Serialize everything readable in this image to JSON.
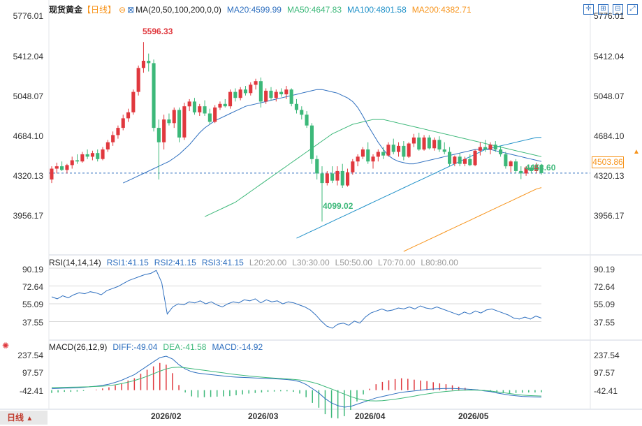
{
  "header": {
    "instrument": "现货黄金",
    "period_tag": "【日线】",
    "ma_label": "MA(20,50,100,200,0,0)",
    "ma20": "MA20:4599.99",
    "ma50": "MA50:4647.83",
    "ma100": "MA100:4801.58",
    "ma200": "MA200:4382.71"
  },
  "price_axis": [
    "5776.01",
    "5412.04",
    "5048.07",
    "4684.10",
    "4320.13",
    "3956.17"
  ],
  "rsi_axis": [
    "90.19",
    "72.64",
    "55.09",
    "37.55"
  ],
  "macd_axis": [
    "237.54",
    "97.57",
    "-42.41"
  ],
  "x_labels": [
    "2026/02",
    "2026/03",
    "2026/04",
    "2026/05"
  ],
  "annotations": {
    "high": "5596.33",
    "low": "4099.02",
    "recent_low": "4453.60",
    "last": "4503.86"
  },
  "rsi_legend": {
    "title": "RSI(14,14,14)",
    "rsi1": "RSI1:41.15",
    "rsi2": "RSI2:41.15",
    "rsi3": "RSI3:41.15",
    "l20": "L20:20.00",
    "l30": "L30:30.00",
    "l50": "L50:50.00",
    "l70": "L70:70.00",
    "l80": "L80:80.00"
  },
  "macd_legend": {
    "title": "MACD(26,12,9)",
    "diff": "DIFF:-49.04",
    "dea": "DEA:-41.58",
    "macd": "MACD:-14.92"
  },
  "period_button": "日线",
  "colors": {
    "up": "#e0383e",
    "down": "#3cb879",
    "ma20": "#2e6fbf",
    "ma50": "#3cb879",
    "ma100": "#1e90c8",
    "ma200": "#f7931a"
  },
  "chart_data": {
    "type": "candlestick",
    "title": "现货黄金 日线",
    "ylim": [
      3850,
      5830
    ],
    "candles": [
      {
        "o": 4450,
        "h": 4560,
        "l": 4420,
        "c": 4540
      },
      {
        "o": 4540,
        "h": 4590,
        "l": 4500,
        "c": 4560
      },
      {
        "o": 4560,
        "h": 4600,
        "l": 4520,
        "c": 4530
      },
      {
        "o": 4530,
        "h": 4580,
        "l": 4500,
        "c": 4570
      },
      {
        "o": 4570,
        "h": 4640,
        "l": 4540,
        "c": 4610
      },
      {
        "o": 4610,
        "h": 4660,
        "l": 4580,
        "c": 4600
      },
      {
        "o": 4600,
        "h": 4680,
        "l": 4590,
        "c": 4660
      },
      {
        "o": 4660,
        "h": 4700,
        "l": 4620,
        "c": 4640
      },
      {
        "o": 4640,
        "h": 4690,
        "l": 4610,
        "c": 4670
      },
      {
        "o": 4670,
        "h": 4700,
        "l": 4600,
        "c": 4620
      },
      {
        "o": 4620,
        "h": 4720,
        "l": 4610,
        "c": 4700
      },
      {
        "o": 4700,
        "h": 4780,
        "l": 4680,
        "c": 4760
      },
      {
        "o": 4760,
        "h": 4850,
        "l": 4730,
        "c": 4820
      },
      {
        "o": 4820,
        "h": 4900,
        "l": 4790,
        "c": 4880
      },
      {
        "o": 4880,
        "h": 4990,
        "l": 4860,
        "c": 4960
      },
      {
        "o": 4960,
        "h": 5040,
        "l": 4930,
        "c": 5010
      },
      {
        "o": 5010,
        "h": 5200,
        "l": 4990,
        "c": 5180
      },
      {
        "o": 5180,
        "h": 5400,
        "l": 5150,
        "c": 5380
      },
      {
        "o": 5380,
        "h": 5596,
        "l": 5340,
        "c": 5440
      },
      {
        "o": 5440,
        "h": 5500,
        "l": 5350,
        "c": 5420
      },
      {
        "o": 5420,
        "h": 5450,
        "l": 4850,
        "c": 4880
      },
      {
        "o": 4880,
        "h": 4950,
        "l": 4450,
        "c": 4760
      },
      {
        "o": 4760,
        "h": 4990,
        "l": 4700,
        "c": 4950
      },
      {
        "o": 4950,
        "h": 5000,
        "l": 4900,
        "c": 4920
      },
      {
        "o": 4920,
        "h": 5050,
        "l": 4880,
        "c": 5030
      },
      {
        "o": 5030,
        "h": 5050,
        "l": 4760,
        "c": 4800
      },
      {
        "o": 4800,
        "h": 5090,
        "l": 4780,
        "c": 5060
      },
      {
        "o": 5060,
        "h": 5120,
        "l": 5020,
        "c": 5100
      },
      {
        "o": 5100,
        "h": 5130,
        "l": 4990,
        "c": 5010
      },
      {
        "o": 5010,
        "h": 5080,
        "l": 4980,
        "c": 5060
      },
      {
        "o": 5060,
        "h": 5110,
        "l": 4980,
        "c": 5000
      },
      {
        "o": 5000,
        "h": 5040,
        "l": 4910,
        "c": 4930
      },
      {
        "o": 4930,
        "h": 5070,
        "l": 4920,
        "c": 5050
      },
      {
        "o": 5050,
        "h": 5100,
        "l": 5030,
        "c": 5080
      },
      {
        "o": 5080,
        "h": 5120,
        "l": 5050,
        "c": 5060
      },
      {
        "o": 5060,
        "h": 5200,
        "l": 5040,
        "c": 5180
      },
      {
        "o": 5180,
        "h": 5210,
        "l": 5100,
        "c": 5130
      },
      {
        "o": 5130,
        "h": 5220,
        "l": 5110,
        "c": 5200
      },
      {
        "o": 5200,
        "h": 5230,
        "l": 5150,
        "c": 5170
      },
      {
        "o": 5170,
        "h": 5260,
        "l": 5150,
        "c": 5240
      },
      {
        "o": 5240,
        "h": 5290,
        "l": 5200,
        "c": 5270
      },
      {
        "o": 5270,
        "h": 5300,
        "l": 5050,
        "c": 5100
      },
      {
        "o": 5100,
        "h": 5210,
        "l": 5080,
        "c": 5190
      },
      {
        "o": 5190,
        "h": 5220,
        "l": 5110,
        "c": 5130
      },
      {
        "o": 5130,
        "h": 5200,
        "l": 5100,
        "c": 5180
      },
      {
        "o": 5180,
        "h": 5210,
        "l": 5140,
        "c": 5160
      },
      {
        "o": 5160,
        "h": 5230,
        "l": 5120,
        "c": 5200
      },
      {
        "o": 5200,
        "h": 5210,
        "l": 5060,
        "c": 5080
      },
      {
        "o": 5080,
        "h": 5120,
        "l": 5000,
        "c": 5030
      },
      {
        "o": 5030,
        "h": 5060,
        "l": 4950,
        "c": 4990
      },
      {
        "o": 4990,
        "h": 5020,
        "l": 4880,
        "c": 4900
      },
      {
        "o": 4900,
        "h": 4920,
        "l": 4580,
        "c": 4620
      },
      {
        "o": 4620,
        "h": 4650,
        "l": 4450,
        "c": 4500
      },
      {
        "o": 4500,
        "h": 4560,
        "l": 4099,
        "c": 4420
      },
      {
        "o": 4420,
        "h": 4520,
        "l": 4400,
        "c": 4500
      },
      {
        "o": 4500,
        "h": 4560,
        "l": 4420,
        "c": 4440
      },
      {
        "o": 4440,
        "h": 4560,
        "l": 4400,
        "c": 4520
      },
      {
        "o": 4520,
        "h": 4580,
        "l": 4380,
        "c": 4400
      },
      {
        "o": 4400,
        "h": 4540,
        "l": 4390,
        "c": 4510
      },
      {
        "o": 4510,
        "h": 4620,
        "l": 4490,
        "c": 4600
      },
      {
        "o": 4600,
        "h": 4660,
        "l": 4560,
        "c": 4640
      },
      {
        "o": 4640,
        "h": 4720,
        "l": 4620,
        "c": 4700
      },
      {
        "o": 4700,
        "h": 4760,
        "l": 4580,
        "c": 4600
      },
      {
        "o": 4600,
        "h": 4660,
        "l": 4540,
        "c": 4640
      },
      {
        "o": 4640,
        "h": 4700,
        "l": 4600,
        "c": 4680
      },
      {
        "o": 4680,
        "h": 4720,
        "l": 4620,
        "c": 4650
      },
      {
        "o": 4650,
        "h": 4760,
        "l": 4640,
        "c": 4740
      },
      {
        "o": 4740,
        "h": 4790,
        "l": 4660,
        "c": 4680
      },
      {
        "o": 4680,
        "h": 4760,
        "l": 4640,
        "c": 4730
      },
      {
        "o": 4730,
        "h": 4770,
        "l": 4610,
        "c": 4640
      },
      {
        "o": 4640,
        "h": 4760,
        "l": 4630,
        "c": 4750
      },
      {
        "o": 4750,
        "h": 4830,
        "l": 4720,
        "c": 4800
      },
      {
        "o": 4800,
        "h": 4840,
        "l": 4690,
        "c": 4700
      },
      {
        "o": 4700,
        "h": 4820,
        "l": 4690,
        "c": 4800
      },
      {
        "o": 4800,
        "h": 4820,
        "l": 4700,
        "c": 4710
      },
      {
        "o": 4710,
        "h": 4800,
        "l": 4690,
        "c": 4780
      },
      {
        "o": 4780,
        "h": 4810,
        "l": 4680,
        "c": 4700
      },
      {
        "o": 4700,
        "h": 4760,
        "l": 4660,
        "c": 4680
      },
      {
        "o": 4680,
        "h": 4720,
        "l": 4560,
        "c": 4580
      },
      {
        "o": 4580,
        "h": 4650,
        "l": 4560,
        "c": 4640
      },
      {
        "o": 4640,
        "h": 4670,
        "l": 4560,
        "c": 4580
      },
      {
        "o": 4580,
        "h": 4640,
        "l": 4560,
        "c": 4620
      },
      {
        "o": 4620,
        "h": 4660,
        "l": 4560,
        "c": 4570
      },
      {
        "o": 4570,
        "h": 4700,
        "l": 4560,
        "c": 4690
      },
      {
        "o": 4690,
        "h": 4760,
        "l": 4650,
        "c": 4720
      },
      {
        "o": 4720,
        "h": 4780,
        "l": 4680,
        "c": 4700
      },
      {
        "o": 4700,
        "h": 4760,
        "l": 4660,
        "c": 4740
      },
      {
        "o": 4740,
        "h": 4770,
        "l": 4680,
        "c": 4700
      },
      {
        "o": 4700,
        "h": 4730,
        "l": 4640,
        "c": 4660
      },
      {
        "o": 4660,
        "h": 4680,
        "l": 4540,
        "c": 4560
      },
      {
        "o": 4560,
        "h": 4610,
        "l": 4510,
        "c": 4600
      },
      {
        "o": 4600,
        "h": 4620,
        "l": 4500,
        "c": 4520
      },
      {
        "o": 4520,
        "h": 4560,
        "l": 4453,
        "c": 4500
      },
      {
        "o": 4500,
        "h": 4560,
        "l": 4480,
        "c": 4550
      },
      {
        "o": 4550,
        "h": 4570,
        "l": 4500,
        "c": 4520
      },
      {
        "o": 4520,
        "h": 4590,
        "l": 4500,
        "c": 4570
      },
      {
        "o": 4570,
        "h": 4580,
        "l": 4490,
        "c": 4503
      }
    ],
    "ma20": [
      4420,
      4440,
      4460,
      4480,
      4500,
      4520,
      4540,
      4560,
      4580,
      4600,
      4630,
      4660,
      4700,
      4740,
      4790,
      4840,
      4880,
      4910,
      4940,
      4960,
      4980,
      5000,
      5020,
      5040,
      5060,
      5070,
      5080,
      5090,
      5100,
      5110,
      5120,
      5130,
      5140,
      5150,
      5160,
      5170,
      5180,
      5190,
      5200,
      5200,
      5190,
      5180,
      5170,
      5150,
      5130,
      5100,
      5050,
      4980,
      4900,
      4830,
      4760,
      4700,
      4650,
      4620,
      4600,
      4590,
      4580,
      4580,
      4590,
      4600,
      4610,
      4620,
      4630,
      4640,
      4650,
      4660,
      4670,
      4680,
      4690,
      4700,
      4700,
      4700,
      4700,
      4690,
      4680,
      4670,
      4660,
      4650,
      4640,
      4630,
      4620,
      4610,
      4600
    ],
    "ma50": [
      4140,
      4160,
      4180,
      4200,
      4220,
      4240,
      4260,
      4290,
      4320,
      4350,
      4380,
      4410,
      4440,
      4470,
      4500,
      4530,
      4560,
      4590,
      4620,
      4650,
      4680,
      4710,
      4740,
      4770,
      4800,
      4830,
      4850,
      4870,
      4890,
      4910,
      4920,
      4930,
      4940,
      4950,
      4950,
      4950,
      4940,
      4930,
      4920,
      4910,
      4900,
      4890,
      4880,
      4870,
      4860,
      4850,
      4840,
      4830,
      4820,
      4810,
      4800,
      4790,
      4780,
      4770,
      4760,
      4750,
      4740,
      4730,
      4720,
      4710,
      4700,
      4690,
      4680,
      4670,
      4660,
      4650,
      4640
    ],
    "ma100": [
      3960,
      3980,
      4000,
      4020,
      4040,
      4060,
      4080,
      4100,
      4120,
      4140,
      4160,
      4180,
      4200,
      4220,
      4240,
      4260,
      4280,
      4300,
      4320,
      4340,
      4360,
      4380,
      4400,
      4420,
      4440,
      4460,
      4480,
      4500,
      4520,
      4540,
      4560,
      4580,
      4600,
      4620,
      4640,
      4660,
      4680,
      4700,
      4710,
      4720,
      4730,
      4740,
      4750,
      4760,
      4770,
      4780,
      4790,
      4800,
      4801
    ],
    "ma200": [
      3850,
      3870,
      3890,
      3910,
      3930,
      3950,
      3970,
      3990,
      4010,
      4030,
      4050,
      4070,
      4090,
      4110,
      4130,
      4150,
      4170,
      4190,
      4210,
      4230,
      4250,
      4270,
      4290,
      4310,
      4330,
      4350,
      4370,
      4382
    ],
    "rsi": [
      62,
      60,
      63,
      61,
      64,
      66,
      65,
      67,
      66,
      64,
      68,
      70,
      72,
      75,
      78,
      80,
      82,
      84,
      85,
      88,
      76,
      45,
      52,
      55,
      54,
      57,
      56,
      58,
      55,
      57,
      54,
      52,
      55,
      57,
      56,
      59,
      58,
      60,
      56,
      59,
      57,
      58,
      55,
      57,
      56,
      54,
      52,
      49,
      44,
      38,
      33,
      31,
      35,
      36,
      34,
      38,
      36,
      42,
      46,
      48,
      50,
      48,
      49,
      51,
      50,
      52,
      50,
      53,
      51,
      50,
      52,
      50,
      48,
      46,
      44,
      47,
      45,
      48,
      46,
      49,
      50,
      48,
      46,
      44,
      41,
      40,
      42,
      40,
      43,
      41
    ],
    "macd_diff": [
      10,
      12,
      14,
      15,
      17,
      20,
      24,
      28,
      34,
      42,
      55,
      70,
      90,
      110,
      140,
      170,
      200,
      230,
      240,
      220,
      180,
      150,
      130,
      120,
      115,
      110,
      105,
      100,
      95,
      92,
      90,
      88,
      86,
      84,
      82,
      80,
      78,
      75,
      70,
      60,
      40,
      10,
      -20,
      -60,
      -90,
      -110,
      -120,
      -115,
      -100,
      -85,
      -70,
      -55,
      -45,
      -35,
      -25,
      -15,
      -10,
      -5,
      0,
      5,
      8,
      10,
      12,
      12,
      10,
      8,
      5,
      2,
      -5,
      -10,
      -20,
      -28,
      -35,
      -40,
      -44,
      -46,
      -48,
      -49
    ],
    "macd_dea": [
      20,
      20,
      20,
      21,
      22,
      23,
      24,
      26,
      28,
      32,
      38,
      46,
      56,
      68,
      82,
      98,
      116,
      134,
      150,
      160,
      162,
      158,
      152,
      146,
      140,
      134,
      128,
      122,
      116,
      110,
      105,
      100,
      96,
      92,
      88,
      85,
      82,
      79,
      76,
      72,
      65,
      55,
      42,
      25,
      8,
      -10,
      -28,
      -45,
      -60,
      -70,
      -75,
      -76,
      -74,
      -70,
      -64,
      -57,
      -50,
      -42,
      -34,
      -27,
      -20,
      -14,
      -9,
      -5,
      -2,
      0,
      1,
      0,
      -2,
      -6,
      -12,
      -18,
      -24,
      -30,
      -35,
      -38,
      -40,
      -41.58
    ]
  }
}
